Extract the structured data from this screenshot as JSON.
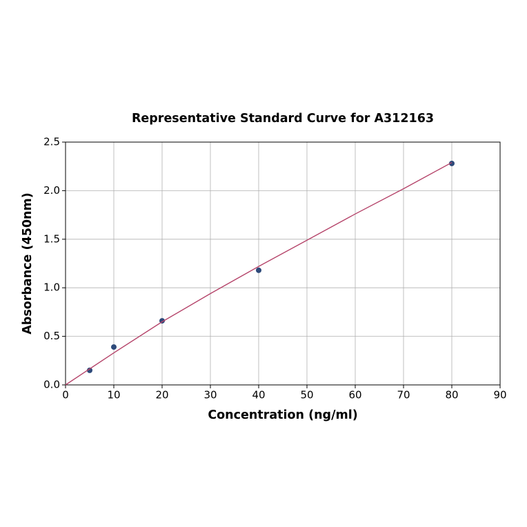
{
  "chart_data": {
    "type": "scatter",
    "title": "Representative Standard Curve for A312163",
    "x_label": "Concentration (ng/ml)",
    "y_label": "Absorbance (450nm)",
    "xlim": [
      0,
      90
    ],
    "ylim": [
      0,
      2.5
    ],
    "xticks": [
      0,
      10,
      20,
      30,
      40,
      50,
      60,
      70,
      80,
      90
    ],
    "yticks": [
      {
        "value": 0,
        "label": "0.0"
      },
      {
        "value": 0.5,
        "label": "0.5"
      },
      {
        "value": 1,
        "label": "1.0"
      },
      {
        "value": 1.5,
        "label": "1.5"
      },
      {
        "value": 2,
        "label": "2.0"
      },
      {
        "value": 2.5,
        "label": "2.5"
      }
    ],
    "grid": true,
    "series": [
      {
        "mode": "markers",
        "color": "#2e4a7a",
        "x": [
          5,
          10,
          20,
          40,
          80
        ],
        "values": [
          0.15,
          0.39,
          0.66,
          1.18,
          2.28
        ]
      },
      {
        "mode": "line",
        "color": "#b5446a",
        "x": [
          0,
          10,
          20,
          30,
          40,
          50,
          60,
          70,
          80
        ],
        "values": [
          0,
          0.33,
          0.65,
          0.94,
          1.22,
          1.49,
          1.76,
          2.02,
          2.29
        ]
      }
    ]
  }
}
